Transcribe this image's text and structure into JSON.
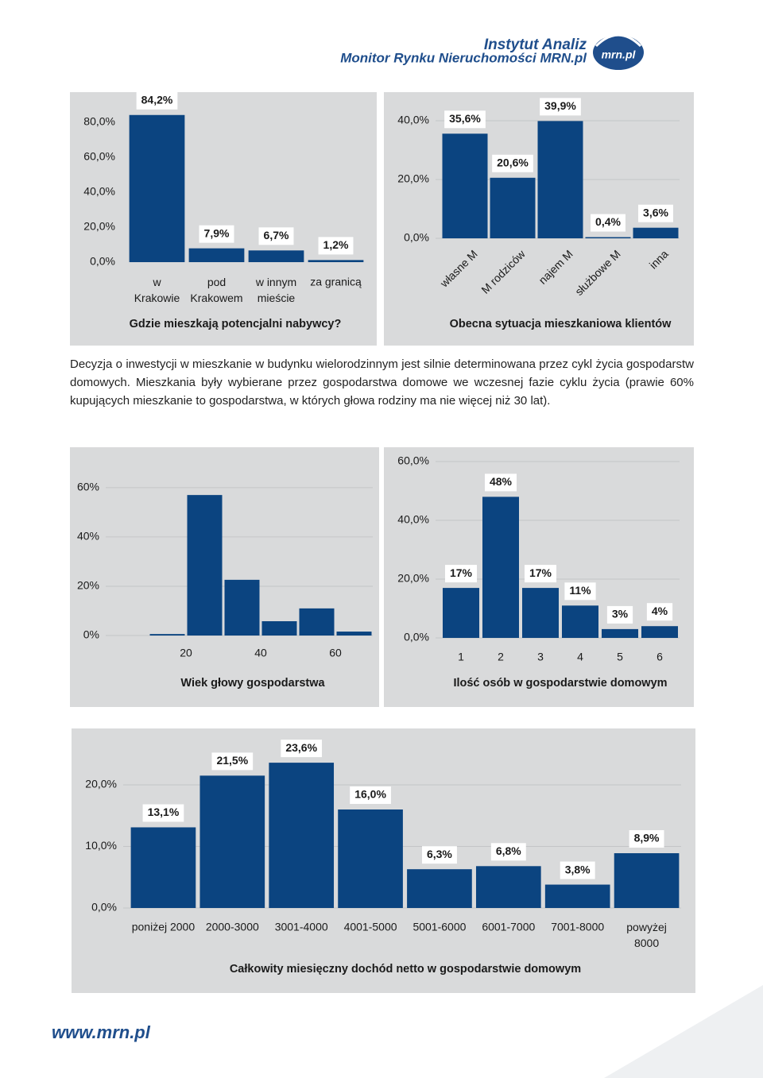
{
  "header": {
    "institute": "Instytut Analiz",
    "subtitle": "Monitor Rynku Nieruchomości MRN.pl",
    "logo": "mrn.pl"
  },
  "chart_data": [
    {
      "type": "bar",
      "title": "Gdzie mieszkają potencjalni nabywcy?",
      "color": "#0b4480",
      "grid": false,
      "categories": [
        "w Krakowie",
        "pod Krakowem",
        "w innym mieście",
        "za granicą"
      ],
      "values": [
        84.2,
        7.9,
        6.7,
        1.2
      ],
      "value_labels": [
        "84,2%",
        "7,9%",
        "6,7%",
        "1,2%"
      ],
      "ylim": [
        0,
        90
      ],
      "yticks": [
        {
          "value": 0,
          "label": "0,0%"
        },
        {
          "value": 20,
          "label": "20,0%"
        },
        {
          "value": 40,
          "label": "40,0%"
        },
        {
          "value": 60,
          "label": "60,0%"
        },
        {
          "value": 80,
          "label": "80,0%"
        }
      ]
    },
    {
      "type": "bar",
      "title": "Obecna sytuacja mieszkaniowa klientów",
      "color": "#0b4480",
      "grid": true,
      "categories": [
        "własne M",
        "M rodziców",
        "najem M",
        "służbowe M",
        "inna"
      ],
      "values": [
        35.6,
        20.6,
        39.9,
        0.4,
        3.6
      ],
      "value_labels": [
        "35,6%",
        "20,6%",
        "39,9%",
        "0,4%",
        "3,6%"
      ],
      "ylim": [
        0,
        45
      ],
      "yticks": [
        {
          "value": 0,
          "label": "0,0%"
        },
        {
          "value": 20,
          "label": "20,0%"
        },
        {
          "value": 40,
          "label": "40,0%"
        }
      ]
    },
    {
      "type": "histogram",
      "title": "Wiek głowy gospodarstwa",
      "color": "#0b4480",
      "grid": true,
      "bins": [
        10,
        20,
        30,
        40,
        50,
        60,
        70
      ],
      "values": [
        0.6,
        57,
        22.6,
        5.8,
        11,
        1.6
      ],
      "xlim": [
        0,
        70
      ],
      "xticks": [
        20,
        40,
        60
      ],
      "ylim": [
        0,
        68
      ],
      "yticks": [
        {
          "value": 0,
          "label": "0%"
        },
        {
          "value": 20,
          "label": "20%"
        },
        {
          "value": 40,
          "label": "40%"
        },
        {
          "value": 60,
          "label": "60%"
        }
      ]
    },
    {
      "type": "bar",
      "title": "Ilość osób w gospodarstwie domowym",
      "color": "#0b4480",
      "grid": true,
      "categories": [
        "1",
        "2",
        "3",
        "4",
        "5",
        "6"
      ],
      "values": [
        17,
        48,
        17,
        11,
        3,
        4
      ],
      "value_labels": [
        "17%",
        "48%",
        "17%",
        "11%",
        "3%",
        "4%"
      ],
      "ylim": [
        0,
        60
      ],
      "yticks": [
        {
          "value": 0,
          "label": "0,0%"
        },
        {
          "value": 20,
          "label": "20,0%"
        },
        {
          "value": 40,
          "label": "40,0%"
        },
        {
          "value": 60,
          "label": "60,0%"
        }
      ]
    },
    {
      "type": "bar",
      "title": "Całkowity miesięczny dochód netto w gospodarstwie domowym",
      "color": "#0b4480",
      "grid": true,
      "categories": [
        "poniżej 2000",
        "2000-3000",
        "3001-4000",
        "4001-5000",
        "5001-6000",
        "6001-7000",
        "7001-8000",
        "powyżej 8000"
      ],
      "values": [
        13.1,
        21.5,
        23.6,
        16.0,
        6.3,
        6.8,
        3.8,
        8.9
      ],
      "value_labels": [
        "13,1%",
        "21,5%",
        "23,6%",
        "16,0%",
        "6,3%",
        "6,8%",
        "3,8%",
        "8,9%"
      ],
      "ylim": [
        0,
        27
      ],
      "yticks": [
        {
          "value": 0,
          "label": "0,0%"
        },
        {
          "value": 10,
          "label": "10,0%"
        },
        {
          "value": 20,
          "label": "20,0%"
        }
      ]
    }
  ],
  "paragraph": "Decyzja o inwestycji w mieszkanie w budynku wielorodzinnym jest silnie determinowana przez cykl życia gospodarstw domowych. Mieszkania były wybierane przez gospodarstwa domowe we wczesnej fazie cyklu życia (prawie 60% kupujących mieszkanie to gospodarstwa, w których głowa rodziny ma nie więcej niż 30 lat).",
  "footer": "www.mrn.pl"
}
